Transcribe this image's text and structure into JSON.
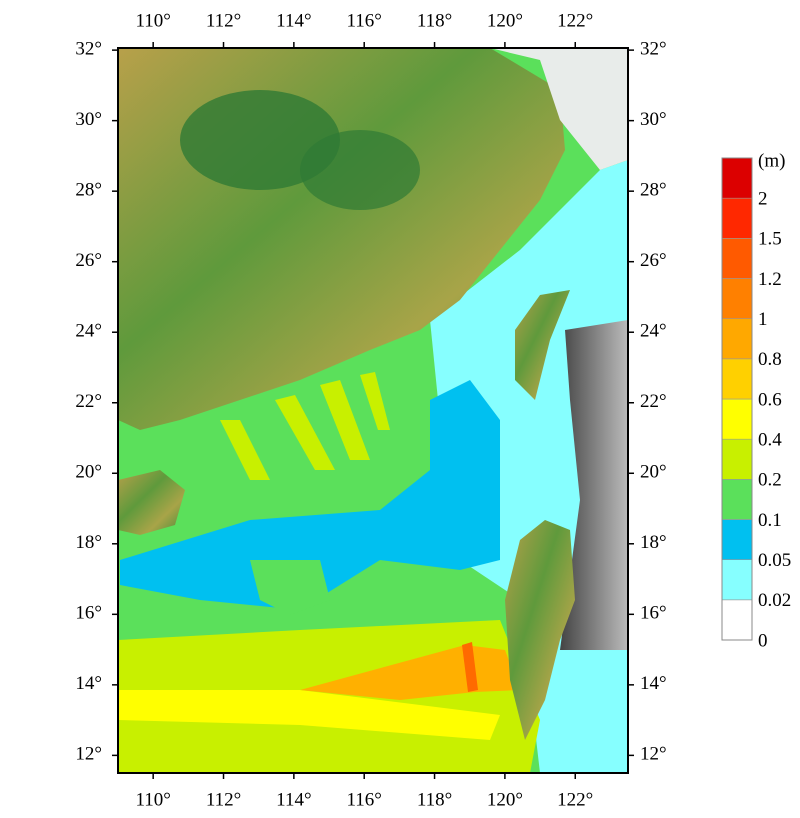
{
  "map": {
    "xlim": [
      109,
      123.5
    ],
    "ylim": [
      11.5,
      32.06
    ],
    "xticks": [
      {
        "value": 110,
        "label": "110°"
      },
      {
        "value": 112,
        "label": "112°"
      },
      {
        "value": 114,
        "label": "114°"
      },
      {
        "value": 116,
        "label": "116°"
      },
      {
        "value": 118,
        "label": "118°"
      },
      {
        "value": 120,
        "label": "120°"
      },
      {
        "value": 122,
        "label": "122°"
      }
    ],
    "yticks": [
      {
        "value": 12,
        "label": "12°"
      },
      {
        "value": 14,
        "label": "14°"
      },
      {
        "value": 16,
        "label": "16°"
      },
      {
        "value": 18,
        "label": "18°"
      },
      {
        "value": 20,
        "label": "20°"
      },
      {
        "value": 22,
        "label": "22°"
      },
      {
        "value": 24,
        "label": "24°"
      },
      {
        "value": 26,
        "label": "26°"
      },
      {
        "value": 28,
        "label": "28°"
      },
      {
        "value": 30,
        "label": "30°"
      },
      {
        "value": 32,
        "label": "32°"
      }
    ]
  },
  "colorbar": {
    "unit": "(m)",
    "levels": [
      0,
      0.02,
      0.05,
      0.1,
      0.2,
      0.4,
      0.6,
      0.8,
      1,
      1.2,
      1.5,
      2
    ],
    "colors": [
      "#ffffff",
      "#86ffff",
      "#00c0f0",
      "#5be05b",
      "#c8f000",
      "#ffff00",
      "#ffd000",
      "#ffa800",
      "#ff8000",
      "#ff5a00",
      "#ff2800",
      "#dc0000"
    ]
  }
}
